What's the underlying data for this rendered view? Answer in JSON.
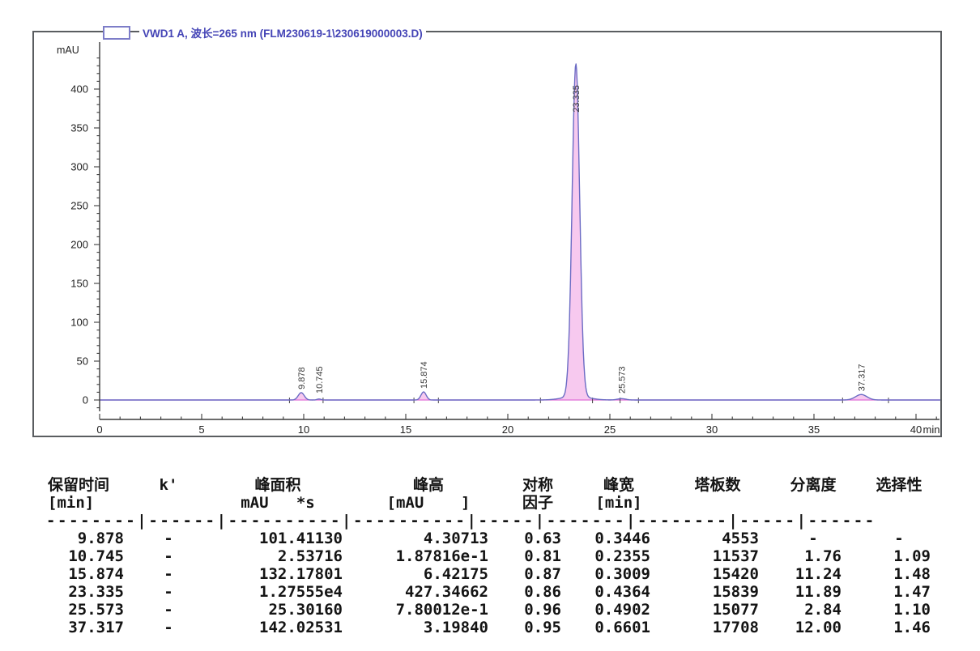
{
  "chart": {
    "legend_label": "VWD1 A, 波长=265 nm (FLM230619-1\\230619000003.D)"
  },
  "chart_data": {
    "type": "line",
    "title": "VWD1 A, 波长=265 nm (FLM230619-1\\230619000003.D)",
    "xlabel": "min",
    "ylabel": "mAU",
    "xlim": [
      0,
      41.5
    ],
    "ylim": [
      -15,
      450
    ],
    "x_ticks": [
      0,
      5,
      10,
      15,
      20,
      25,
      30,
      35,
      40
    ],
    "y_ticks": [
      0,
      50,
      100,
      150,
      200,
      250,
      300,
      350,
      400
    ],
    "grid": false,
    "legend_position": "top-left",
    "line_color": "#6b6bc4",
    "baseline_color": "#e06fd6",
    "peak_fill_color": "#f7c9ef",
    "axis_color": "#3c3c3c",
    "peaks": [
      {
        "label": "9.878",
        "rt": 9.878,
        "height_mAU": 4.30713,
        "width_min": 0.3446
      },
      {
        "label": "10.745",
        "rt": 10.745,
        "height_mAU": 0.187816,
        "width_min": 0.2355
      },
      {
        "label": "15.874",
        "rt": 15.874,
        "height_mAU": 6.42175,
        "width_min": 0.3009
      },
      {
        "label": "23.335",
        "rt": 23.335,
        "height_mAU": 427.34662,
        "width_min": 0.4364
      },
      {
        "label": "25.573",
        "rt": 25.573,
        "height_mAU": 0.780012,
        "width_min": 0.4902
      },
      {
        "label": "37.317",
        "rt": 37.317,
        "height_mAU": 3.1984,
        "width_min": 0.6601
      }
    ],
    "integration_marks_min": [
      9.3,
      10.95,
      15.4,
      16.6,
      21.6,
      24.15,
      25.5,
      26.4,
      36.4,
      38.65
    ]
  },
  "table": {
    "headers": [
      {
        "l1": "保留时间",
        "l2": "[min]"
      },
      {
        "l1": "k'",
        "l2": ""
      },
      {
        "l1": "峰面积",
        "l2": "mAU   *s"
      },
      {
        "l1": "峰高",
        "l2": "[mAU    ]"
      },
      {
        "l1": "对称",
        "l2": "因子"
      },
      {
        "l1": "峰宽",
        "l2": "[min]"
      },
      {
        "l1": "塔板数",
        "l2": ""
      },
      {
        "l1": "分离度",
        "l2": ""
      },
      {
        "l1": "选择性",
        "l2": ""
      }
    ],
    "separator": "--------|------|----------|----------|-----|-------|--------|-----|------",
    "rows": [
      [
        "9.878",
        "-",
        "101.41130",
        "4.30713",
        "0.63",
        "0.3446",
        "4553",
        "-",
        "-"
      ],
      [
        "10.745",
        "-",
        "2.53716",
        "1.87816e-1",
        "0.81",
        "0.2355",
        "11537",
        "1.76",
        "1.09"
      ],
      [
        "15.874",
        "-",
        "132.17801",
        "6.42175",
        "0.87",
        "0.3009",
        "15420",
        "11.24",
        "1.48"
      ],
      [
        "23.335",
        "-",
        "1.27555e4",
        "427.34662",
        "0.86",
        "0.4364",
        "15839",
        "11.89",
        "1.47"
      ],
      [
        "25.573",
        "-",
        "25.30160",
        "7.80012e-1",
        "0.96",
        "0.4902",
        "15077",
        "2.84",
        "1.10"
      ],
      [
        "37.317",
        "-",
        "142.02531",
        "3.19840",
        "0.95",
        "0.6601",
        "17708",
        "12.00",
        "1.46"
      ]
    ]
  }
}
